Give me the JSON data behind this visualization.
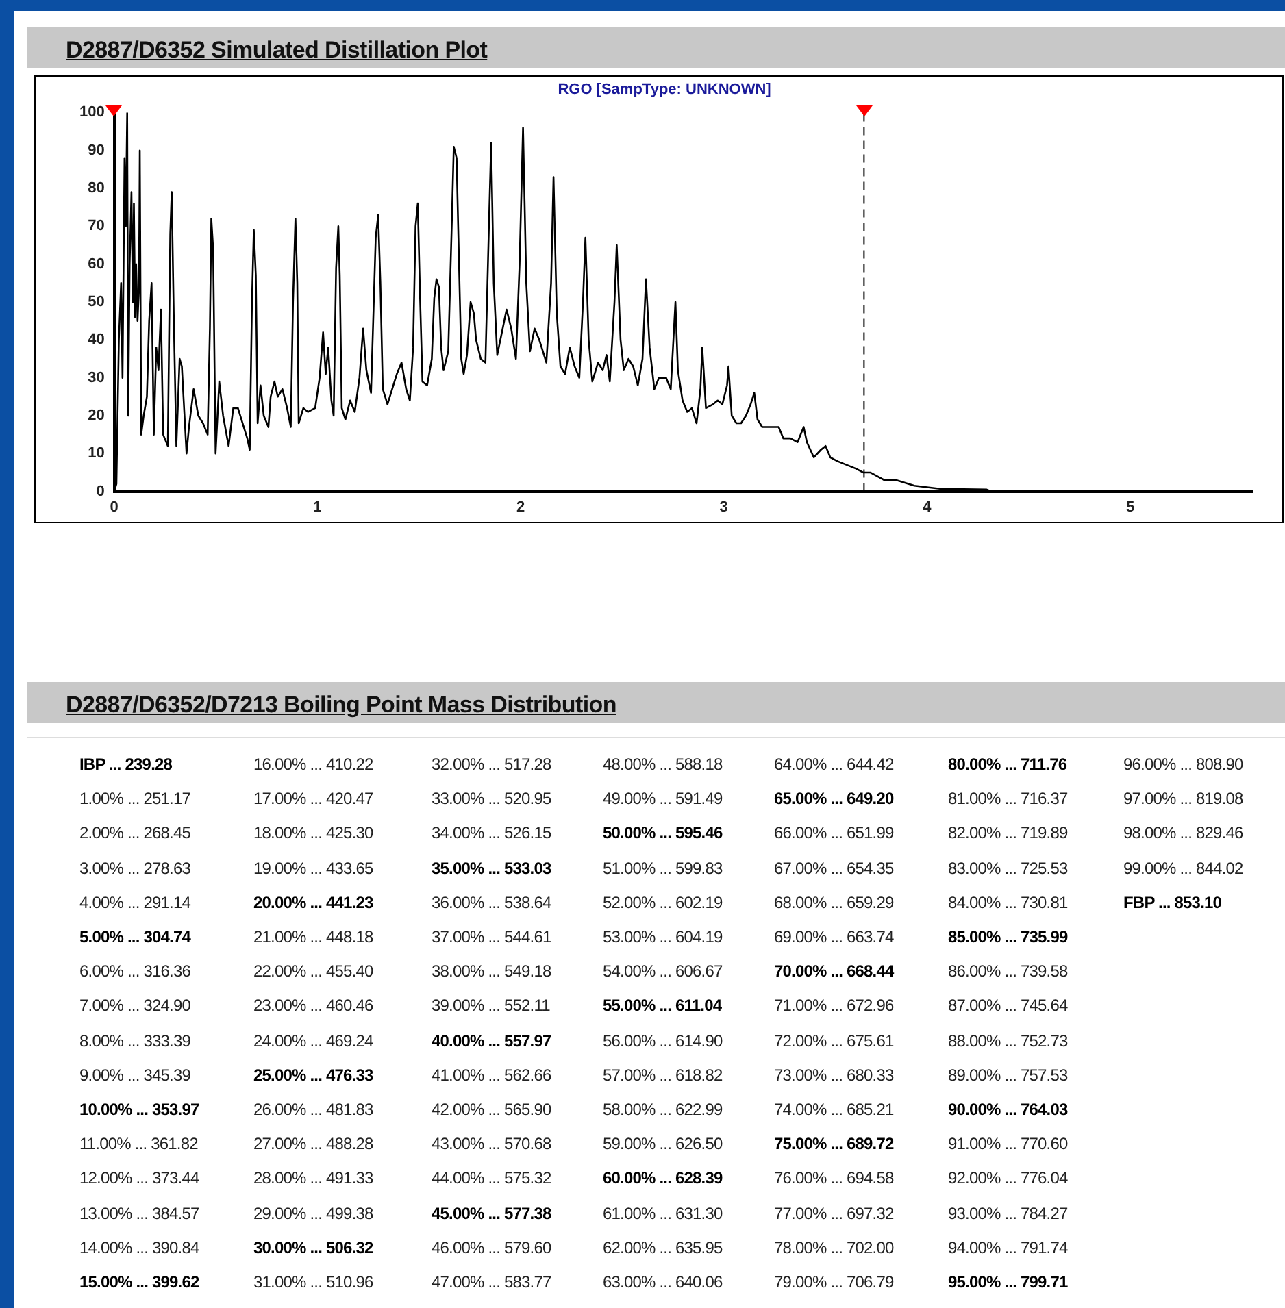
{
  "chart_data": [
    {
      "type": "line",
      "title": "D2887/D6352 Simulated Distillation Plot",
      "subtitle": "RGO [SampType: UNKNOWN]",
      "xlim": [
        0,
        5.6
      ],
      "xticks": [
        0,
        1,
        2,
        3,
        4,
        5
      ],
      "ylim": [
        0,
        100
      ],
      "yticks": [
        0,
        10,
        20,
        30,
        40,
        50,
        60,
        70,
        80,
        90,
        100
      ],
      "series": [
        {
          "color": "#000000",
          "x": [
            0,
            0.011,
            0.023,
            0.034,
            0.041,
            0.051,
            0.057,
            0.064,
            0.069,
            0.076,
            0.085,
            0.092,
            0.097,
            0.103,
            0.108,
            0.115,
            0.122,
            0.126,
            0.133,
            0.145,
            0.161,
            0.172,
            0.184,
            0.195,
            0.207,
            0.218,
            0.23,
            0.241,
            0.264,
            0.276,
            0.283,
            0.294,
            0.306,
            0.322,
            0.333,
            0.356,
            0.368,
            0.391,
            0.414,
            0.437,
            0.46,
            0.471,
            0.478,
            0.487,
            0.499,
            0.517,
            0.536,
            0.563,
            0.586,
            0.609,
            0.632,
            0.655,
            0.667,
            0.678,
            0.687,
            0.697,
            0.706,
            0.72,
            0.736,
            0.759,
            0.77,
            0.789,
            0.805,
            0.828,
            0.851,
            0.869,
            0.88,
            0.892,
            0.901,
            0.908,
            0.931,
            0.954,
            0.989,
            1.011,
            1.028,
            1.041,
            1.053,
            1.069,
            1.08,
            1.092,
            1.103,
            1.11,
            1.12,
            1.138,
            1.161,
            1.184,
            1.207,
            1.225,
            1.241,
            1.264,
            1.287,
            1.299,
            1.31,
            1.322,
            1.345,
            1.368,
            1.391,
            1.414,
            1.437,
            1.455,
            1.471,
            1.483,
            1.494,
            1.506,
            1.517,
            1.54,
            1.563,
            1.575,
            1.586,
            1.598,
            1.609,
            1.621,
            1.644,
            1.662,
            1.671,
            1.685,
            1.694,
            1.708,
            1.72,
            1.736,
            1.754,
            1.77,
            1.781,
            1.804,
            1.827,
            1.845,
            1.855,
            1.868,
            1.885,
            1.908,
            1.931,
            1.954,
            1.977,
            1.995,
            2.012,
            2.028,
            2.046,
            2.069,
            2.092,
            2.127,
            2.15,
            2.162,
            2.178,
            2.196,
            2.219,
            2.242,
            2.266,
            2.289,
            2.307,
            2.319,
            2.335,
            2.353,
            2.381,
            2.404,
            2.423,
            2.439,
            2.462,
            2.473,
            2.492,
            2.508,
            2.531,
            2.554,
            2.577,
            2.6,
            2.617,
            2.635,
            2.658,
            2.681,
            2.716,
            2.739,
            2.751,
            2.762,
            2.774,
            2.797,
            2.82,
            2.843,
            2.866,
            2.885,
            2.894,
            2.912,
            2.947,
            2.97,
            2.993,
            3.016,
            3.023,
            3.039,
            3.062,
            3.085,
            3.109,
            3.132,
            3.15,
            3.166,
            3.189,
            3.236,
            3.27,
            3.293,
            3.328,
            3.363,
            3.393,
            3.409,
            3.443,
            3.478,
            3.501,
            3.524,
            3.559,
            3.605,
            3.651,
            3.686,
            3.721,
            3.755,
            3.79,
            3.848,
            3.938,
            4.064,
            4.294,
            4.317,
            5.55
          ],
          "values": [
            0,
            2,
            40,
            55,
            30,
            88,
            70,
            100,
            20,
            60,
            79,
            50,
            76,
            46,
            60,
            45,
            54,
            90,
            15,
            20,
            25,
            45,
            55,
            15,
            38,
            32,
            48,
            15,
            12,
            68,
            79,
            44,
            12,
            35,
            33,
            10,
            17,
            27,
            20,
            18,
            15,
            43,
            72,
            64,
            10,
            29,
            20,
            12,
            22,
            22,
            18,
            14,
            11,
            50,
            69,
            57,
            18,
            28,
            20,
            17,
            25,
            29,
            25,
            27,
            22,
            17,
            50,
            72,
            55,
            18,
            22,
            21,
            22,
            30,
            42,
            31,
            38,
            24,
            20,
            59,
            70,
            57,
            22,
            19,
            24,
            21,
            30,
            43,
            32,
            26,
            67,
            73,
            55,
            27,
            23,
            27,
            31,
            34,
            27,
            24,
            38,
            70,
            76,
            50,
            29,
            28,
            35,
            51,
            56,
            54,
            38,
            32,
            37,
            72,
            91,
            88,
            67,
            35,
            31,
            36,
            50,
            47,
            40,
            35,
            34,
            72,
            92,
            55,
            36,
            42,
            48,
            43,
            35,
            60,
            96,
            55,
            37,
            43,
            40,
            34,
            55,
            83,
            47,
            33,
            31,
            38,
            33,
            30,
            50,
            67,
            40,
            29,
            34,
            32,
            36,
            29,
            50,
            65,
            40,
            32,
            35,
            33,
            28,
            35,
            56,
            38,
            27,
            30,
            30,
            27,
            39,
            50,
            32,
            24,
            21,
            22,
            18,
            27,
            38,
            22,
            23,
            24,
            23,
            28,
            33,
            20,
            18,
            18,
            20,
            23,
            26,
            19,
            17,
            17,
            17,
            14,
            14,
            13,
            17,
            13,
            9,
            11,
            12,
            9,
            8,
            7,
            6,
            5,
            5,
            4,
            3,
            3,
            1.5,
            0.7,
            0.5,
            0,
            0
          ]
        }
      ],
      "ref_lines": [
        {
          "axis": "x",
          "value": 3.69,
          "color": "#000000",
          "line_style": "dashed"
        }
      ]
    },
    {
      "type": "other",
      "title": "D2887/D6352/D7213 Boiling Point Mass Distribution",
      "annotations": [
        "IBP ... 239.28",
        "1.00% ... 251.17",
        "2.00% ... 268.45",
        "3.00% ... 278.63",
        "4.00% ... 291.14",
        "5.00% ... 304.74",
        "6.00% ... 316.36",
        "7.00% ... 324.90",
        "8.00% ... 333.39",
        "9.00% ... 345.39",
        "10.00% ... 353.97",
        "11.00% ... 361.82",
        "12.00% ... 373.44",
        "13.00% ... 384.57",
        "14.00% ... 390.84",
        "15.00% ... 399.62",
        "16.00% ... 410.22",
        "17.00% ... 420.47",
        "18.00% ... 425.30",
        "19.00% ... 433.65",
        "20.00% ... 441.23",
        "21.00% ... 448.18",
        "22.00% ... 455.40",
        "23.00% ... 460.46",
        "24.00% ... 469.24",
        "25.00% ... 476.33",
        "26.00% ... 481.83",
        "27.00% ... 488.28",
        "28.00% ... 491.33",
        "29.00% ... 499.38",
        "30.00% ... 506.32",
        "31.00% ... 510.96",
        "32.00% ... 517.28",
        "33.00% ... 520.95",
        "34.00% ... 526.15",
        "35.00% ... 533.03",
        "36.00% ... 538.64",
        "37.00% ... 544.61",
        "38.00% ... 549.18",
        "39.00% ... 552.11",
        "40.00% ... 557.97",
        "41.00% ... 562.66",
        "42.00% ... 565.90",
        "43.00% ... 570.68",
        "44.00% ... 575.32",
        "45.00% ... 577.38",
        "46.00% ... 579.60",
        "47.00% ... 583.77",
        "48.00% ... 588.18",
        "49.00% ... 591.49",
        "50.00% ... 595.46",
        "51.00% ... 599.83",
        "52.00% ... 602.19",
        "53.00% ... 604.19",
        "54.00% ... 606.67",
        "55.00% ... 611.04",
        "56.00% ... 614.90",
        "57.00% ... 618.82",
        "58.00% ... 622.99",
        "59.00% ... 626.50",
        "60.00% ... 628.39",
        "61.00% ... 631.30",
        "62.00% ... 635.95",
        "63.00% ... 640.06",
        "64.00% ... 644.42",
        "65.00% ... 649.20",
        "66.00% ... 651.99",
        "67.00% ... 654.35",
        "68.00% ... 659.29",
        "69.00% ... 663.74",
        "70.00% ... 668.44",
        "71.00% ... 672.96",
        "72.00% ... 675.61",
        "73.00% ... 680.33",
        "74.00% ... 685.21",
        "75.00% ... 689.72",
        "76.00% ... 694.58",
        "77.00% ... 697.32",
        "78.00% ... 702.00",
        "79.00% ... 706.79",
        "80.00% ... 711.76",
        "81.00% ... 716.37",
        "82.00% ... 719.89",
        "83.00% ... 725.53",
        "84.00% ... 730.81",
        "85.00% ... 735.99",
        "86.00% ... 739.58",
        "87.00% ... 745.64",
        "88.00% ... 752.73",
        "89.00% ... 757.53",
        "90.00% ... 764.03",
        "91.00% ... 770.60",
        "92.00% ... 776.04",
        "93.00% ... 784.27",
        "94.00% ... 791.74",
        "95.00% ... 799.71",
        "96.00% ... 808.90",
        "97.00% ... 819.08",
        "98.00% ... 829.46",
        "99.00% ... 844.02",
        "FBP ... 853.10"
      ]
    }
  ]
}
